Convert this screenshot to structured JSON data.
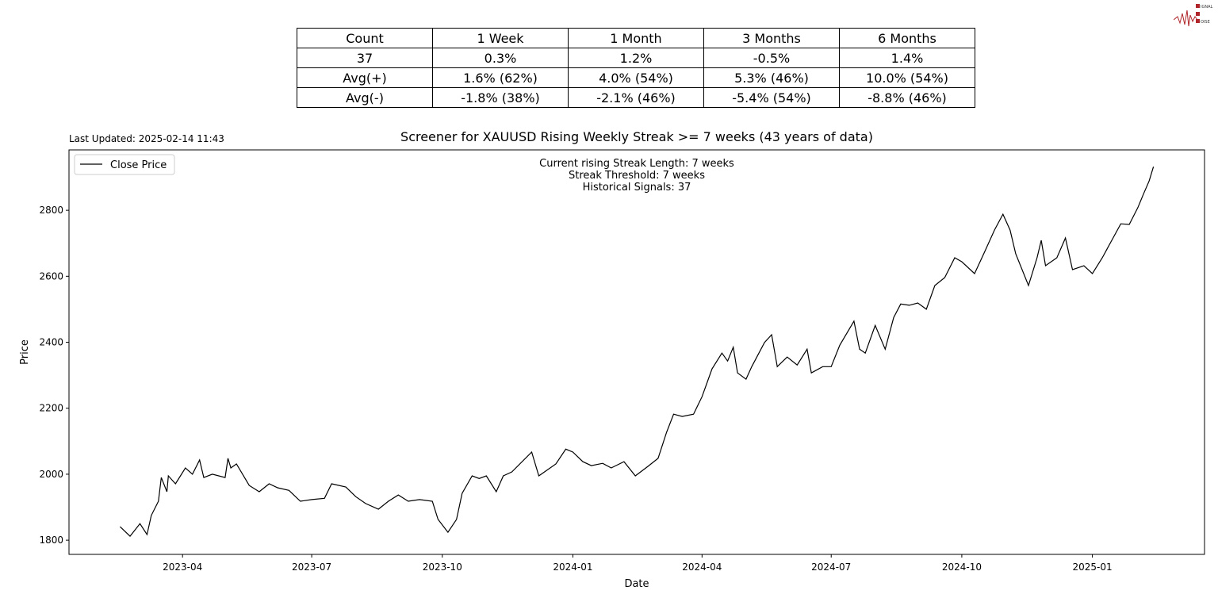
{
  "logo": {
    "text": "SIGNAL 2 NOISE",
    "color": "#b0252a"
  },
  "table": {
    "headers": [
      "Count",
      "1 Week",
      "1 Month",
      "3 Months",
      "6 Months"
    ],
    "rows": [
      [
        "37",
        "0.3%",
        "1.2%",
        "-0.5%",
        "1.4%"
      ],
      [
        "Avg(+)",
        "1.6% (62%)",
        "4.0% (54%)",
        "5.3% (46%)",
        "10.0% (54%)"
      ],
      [
        "Avg(-)",
        "-1.8% (38%)",
        "-2.1% (46%)",
        "-5.4% (54%)",
        "-8.8% (46%)"
      ]
    ]
  },
  "last_updated": "Last Updated: 2025-02-14 11:43",
  "chart_data": {
    "type": "line",
    "title": "Screener for XAUUSD Rising Weekly Streak >= 7 weeks (43 years of data)",
    "xlabel": "Date",
    "ylabel": "Price",
    "xlim": [
      "2023-01-11",
      "2025-03-21"
    ],
    "ylim": [
      1757,
      2983
    ],
    "xticks": [
      "2023-04",
      "2023-07",
      "2023-10",
      "2024-01",
      "2024-04",
      "2024-07",
      "2024-10",
      "2025-01"
    ],
    "yticks": [
      1800,
      2000,
      2200,
      2400,
      2600,
      2800
    ],
    "grid": false,
    "legend": "top-left",
    "annotations": [
      "Current rising Streak Length: 7 weeks",
      "Streak Threshold: 7 weeks",
      "Historical Signals: 37"
    ],
    "series": [
      {
        "name": "Close Price",
        "color": "#000000",
        "points": [
          [
            "2023-02-16",
            1841
          ],
          [
            "2023-02-23",
            1812
          ],
          [
            "2023-03-02",
            1850
          ],
          [
            "2023-03-07",
            1817
          ],
          [
            "2023-03-10",
            1875
          ],
          [
            "2023-03-15",
            1918
          ],
          [
            "2023-03-17",
            1990
          ],
          [
            "2023-03-21",
            1947
          ],
          [
            "2023-03-22",
            1995
          ],
          [
            "2023-03-27",
            1971
          ],
          [
            "2023-04-03",
            2019
          ],
          [
            "2023-04-08",
            2000
          ],
          [
            "2023-04-13",
            2043
          ],
          [
            "2023-04-16",
            1990
          ],
          [
            "2023-04-22",
            2000
          ],
          [
            "2023-05-01",
            1990
          ],
          [
            "2023-05-03",
            2048
          ],
          [
            "2023-05-05",
            2019
          ],
          [
            "2023-05-09",
            2031
          ],
          [
            "2023-05-18",
            1966
          ],
          [
            "2023-05-25",
            1947
          ],
          [
            "2023-06-01",
            1971
          ],
          [
            "2023-06-07",
            1959
          ],
          [
            "2023-06-15",
            1951
          ],
          [
            "2023-06-23",
            1918
          ],
          [
            "2023-07-01",
            1923
          ],
          [
            "2023-07-10",
            1927
          ],
          [
            "2023-07-15",
            1971
          ],
          [
            "2023-07-25",
            1961
          ],
          [
            "2023-08-01",
            1932
          ],
          [
            "2023-08-08",
            1911
          ],
          [
            "2023-08-17",
            1894
          ],
          [
            "2023-08-24",
            1918
          ],
          [
            "2023-08-31",
            1937
          ],
          [
            "2023-09-07",
            1918
          ],
          [
            "2023-09-15",
            1923
          ],
          [
            "2023-09-24",
            1918
          ],
          [
            "2023-09-28",
            1863
          ],
          [
            "2023-10-05",
            1824
          ],
          [
            "2023-10-11",
            1863
          ],
          [
            "2023-10-15",
            1942
          ],
          [
            "2023-10-22",
            1995
          ],
          [
            "2023-10-27",
            1987
          ],
          [
            "2023-11-01",
            1995
          ],
          [
            "2023-11-08",
            1947
          ],
          [
            "2023-11-13",
            1995
          ],
          [
            "2023-11-19",
            2007
          ],
          [
            "2023-12-03",
            2067
          ],
          [
            "2023-12-08",
            1995
          ],
          [
            "2023-12-20",
            2031
          ],
          [
            "2023-12-27",
            2076
          ],
          [
            "2024-01-01",
            2067
          ],
          [
            "2024-01-08",
            2038
          ],
          [
            "2024-01-14",
            2026
          ],
          [
            "2024-01-22",
            2033
          ],
          [
            "2024-01-28",
            2019
          ],
          [
            "2024-02-06",
            2038
          ],
          [
            "2024-02-14",
            1995
          ],
          [
            "2024-02-23",
            2024
          ],
          [
            "2024-03-01",
            2048
          ],
          [
            "2024-03-07",
            2127
          ],
          [
            "2024-03-12",
            2182
          ],
          [
            "2024-03-18",
            2175
          ],
          [
            "2024-03-26",
            2182
          ],
          [
            "2024-04-01",
            2235
          ],
          [
            "2024-04-08",
            2319
          ],
          [
            "2024-04-15",
            2367
          ],
          [
            "2024-04-19",
            2343
          ],
          [
            "2024-04-23",
            2385
          ],
          [
            "2024-04-26",
            2307
          ],
          [
            "2024-05-02",
            2288
          ],
          [
            "2024-05-06",
            2326
          ],
          [
            "2024-05-15",
            2399
          ],
          [
            "2024-05-20",
            2423
          ],
          [
            "2024-05-24",
            2326
          ],
          [
            "2024-05-31",
            2355
          ],
          [
            "2024-06-07",
            2331
          ],
          [
            "2024-06-14",
            2379
          ],
          [
            "2024-06-17",
            2307
          ],
          [
            "2024-06-25",
            2326
          ],
          [
            "2024-07-01",
            2326
          ],
          [
            "2024-07-07",
            2391
          ],
          [
            "2024-07-17",
            2464
          ],
          [
            "2024-07-21",
            2379
          ],
          [
            "2024-07-25",
            2367
          ],
          [
            "2024-08-01",
            2451
          ],
          [
            "2024-08-08",
            2379
          ],
          [
            "2024-08-14",
            2475
          ],
          [
            "2024-08-19",
            2516
          ],
          [
            "2024-08-25",
            2512
          ],
          [
            "2024-08-31",
            2519
          ],
          [
            "2024-09-06",
            2500
          ],
          [
            "2024-09-12",
            2572
          ],
          [
            "2024-09-19",
            2596
          ],
          [
            "2024-09-26",
            2656
          ],
          [
            "2024-10-01",
            2644
          ],
          [
            "2024-10-10",
            2608
          ],
          [
            "2024-10-17",
            2673
          ],
          [
            "2024-10-24",
            2740
          ],
          [
            "2024-10-30",
            2788
          ],
          [
            "2024-11-04",
            2740
          ],
          [
            "2024-11-08",
            2668
          ],
          [
            "2024-11-17",
            2572
          ],
          [
            "2024-11-23",
            2656
          ],
          [
            "2024-11-26",
            2709
          ],
          [
            "2024-11-29",
            2632
          ],
          [
            "2024-12-07",
            2656
          ],
          [
            "2024-12-13",
            2716
          ],
          [
            "2024-12-18",
            2620
          ],
          [
            "2024-12-26",
            2632
          ],
          [
            "2025-01-01",
            2608
          ],
          [
            "2025-01-08",
            2656
          ],
          [
            "2025-01-14",
            2704
          ],
          [
            "2025-01-21",
            2759
          ],
          [
            "2025-01-27",
            2757
          ],
          [
            "2025-02-02",
            2808
          ],
          [
            "2025-02-06",
            2849
          ],
          [
            "2025-02-10",
            2889
          ],
          [
            "2025-02-13",
            2932
          ]
        ]
      }
    ]
  }
}
